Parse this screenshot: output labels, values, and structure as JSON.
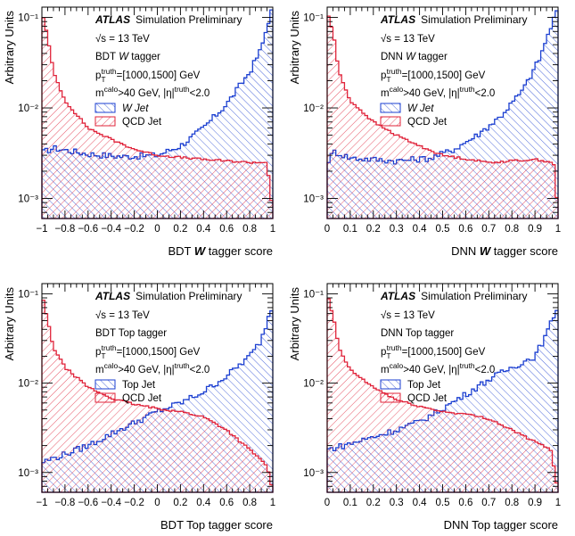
{
  "colors": {
    "signal": "#1b3fd1",
    "background": "#e0233a",
    "axis": "#000000"
  },
  "chart_data": [
    {
      "type": "histogram",
      "scale": "log",
      "xlim": [
        -1,
        1
      ],
      "ylim": [
        0.0006,
        0.13
      ],
      "xticks": [
        -1,
        -0.8,
        -0.6,
        -0.4,
        -0.2,
        0,
        0.2,
        0.4,
        0.6,
        0.8,
        1
      ],
      "xtick_labels": [
        "−1",
        "−0.8",
        "−0.6",
        "−0.4",
        "−0.2",
        "0",
        "0.2",
        "0.4",
        "0.6",
        "0.8",
        "1"
      ],
      "yticks": [
        0.001,
        0.01,
        0.1
      ],
      "ytick_labels": [
        "10⁻³",
        "10⁻²",
        "10⁻¹"
      ],
      "xlabel_pre": "BDT ",
      "xlabel_em": "W",
      "xlabel_post": " tagger score",
      "ylabel": "Arbitrary Units",
      "atlas_label": "ATLAS",
      "atlas_sub": "Simulation Preliminary",
      "lines": [
        "√s = 13 TeV",
        "BDT W tagger",
        "p_T^truth=[1000,1500] GeV",
        "m^calo>40 GeV, |η|^truth<2.0"
      ],
      "legend": [
        {
          "label": "W Jet",
          "label_em": true,
          "role": "signal"
        },
        {
          "label": "QCD Jet",
          "label_em": false,
          "role": "background"
        }
      ],
      "nbins": 80,
      "series": [
        {
          "name": "W Jet",
          "role": "signal",
          "profile": [
            [
              -1,
              0.0032
            ],
            [
              -0.9,
              0.0036
            ],
            [
              -0.6,
              0.0031
            ],
            [
              -0.3,
              0.0029
            ],
            [
              0,
              0.003
            ],
            [
              0.2,
              0.0038
            ],
            [
              0.4,
              0.006
            ],
            [
              0.6,
              0.011
            ],
            [
              0.8,
              0.025
            ],
            [
              0.9,
              0.045
            ],
            [
              0.97,
              0.1
            ],
            [
              1,
              0.13
            ]
          ]
        },
        {
          "name": "QCD Jet",
          "role": "background",
          "profile": [
            [
              -1,
              0.12
            ],
            [
              -0.95,
              0.06
            ],
            [
              -0.9,
              0.025
            ],
            [
              -0.8,
              0.012
            ],
            [
              -0.6,
              0.006
            ],
            [
              -0.4,
              0.0045
            ],
            [
              -0.2,
              0.0035
            ],
            [
              0,
              0.003
            ],
            [
              0.4,
              0.0027
            ],
            [
              0.8,
              0.0025
            ],
            [
              0.95,
              0.0025
            ],
            [
              1,
              0.0007
            ]
          ]
        }
      ]
    },
    {
      "type": "histogram",
      "scale": "log",
      "xlim": [
        0,
        1
      ],
      "ylim": [
        0.0006,
        0.13
      ],
      "xticks": [
        0,
        0.1,
        0.2,
        0.3,
        0.4,
        0.5,
        0.6,
        0.7,
        0.8,
        0.9,
        1
      ],
      "xtick_labels": [
        "0",
        "0.1",
        "0.2",
        "0.3",
        "0.4",
        "0.5",
        "0.6",
        "0.7",
        "0.8",
        "0.9",
        "1"
      ],
      "yticks": [
        0.001,
        0.01,
        0.1
      ],
      "ytick_labels": [
        "10⁻³",
        "10⁻²",
        "10⁻¹"
      ],
      "xlabel_pre": "DNN ",
      "xlabel_em": "W",
      "xlabel_post": " tagger score",
      "ylabel": "Arbitrary Units",
      "atlas_label": "ATLAS",
      "atlas_sub": "Simulation Preliminary",
      "lines": [
        "√s = 13 TeV",
        "DNN W tagger",
        "p_T^truth=[1000,1500] GeV",
        "m^calo>40 GeV, |η|^truth<2.0"
      ],
      "legend": [
        {
          "label": "W Jet",
          "label_em": true,
          "role": "signal"
        },
        {
          "label": "QCD Jet",
          "label_em": false,
          "role": "background"
        }
      ],
      "nbins": 80,
      "series": [
        {
          "name": "W Jet",
          "role": "signal",
          "profile": [
            [
              0,
              0.0025
            ],
            [
              0.03,
              0.0033
            ],
            [
              0.1,
              0.0028
            ],
            [
              0.3,
              0.0026
            ],
            [
              0.45,
              0.0028
            ],
            [
              0.55,
              0.0035
            ],
            [
              0.65,
              0.005
            ],
            [
              0.75,
              0.008
            ],
            [
              0.85,
              0.016
            ],
            [
              0.92,
              0.035
            ],
            [
              0.97,
              0.08
            ],
            [
              1,
              0.13
            ]
          ]
        },
        {
          "name": "QCD Jet",
          "role": "background",
          "profile": [
            [
              0,
              0.12
            ],
            [
              0.03,
              0.06
            ],
            [
              0.05,
              0.025
            ],
            [
              0.1,
              0.012
            ],
            [
              0.2,
              0.007
            ],
            [
              0.3,
              0.005
            ],
            [
              0.4,
              0.0038
            ],
            [
              0.5,
              0.003
            ],
            [
              0.7,
              0.0025
            ],
            [
              0.9,
              0.0027
            ],
            [
              0.98,
              0.0025
            ],
            [
              1,
              0.0007
            ]
          ]
        }
      ]
    },
    {
      "type": "histogram",
      "scale": "log",
      "xlim": [
        -1,
        1
      ],
      "ylim": [
        0.0006,
        0.13
      ],
      "xticks": [
        -1,
        -0.8,
        -0.6,
        -0.4,
        -0.2,
        0,
        0.2,
        0.4,
        0.6,
        0.8,
        1
      ],
      "xtick_labels": [
        "−1",
        "−0.8",
        "−0.6",
        "−0.4",
        "−0.2",
        "0",
        "0.2",
        "0.4",
        "0.6",
        "0.8",
        "1"
      ],
      "yticks": [
        0.001,
        0.01,
        0.1
      ],
      "ytick_labels": [
        "10⁻³",
        "10⁻²",
        "10⁻¹"
      ],
      "xlabel_pre": "BDT Top tagger score",
      "xlabel_em": "",
      "xlabel_post": "",
      "ylabel": "Arbitrary Units",
      "atlas_label": "ATLAS",
      "atlas_sub": "Simulation Preliminary",
      "lines": [
        "√s = 13 TeV",
        "BDT Top tagger",
        "p_T^truth=[1000,1500] GeV",
        "m^calo>40 GeV, |η|^truth<2.0"
      ],
      "legend": [
        {
          "label": "Top Jet",
          "label_em": false,
          "role": "signal"
        },
        {
          "label": "QCD Jet",
          "label_em": false,
          "role": "background"
        }
      ],
      "nbins": 80,
      "series": [
        {
          "name": "Top Jet",
          "role": "signal",
          "profile": [
            [
              -1,
              0.0013
            ],
            [
              -0.8,
              0.0016
            ],
            [
              -0.6,
              0.002
            ],
            [
              -0.4,
              0.0027
            ],
            [
              -0.2,
              0.0036
            ],
            [
              0,
              0.0048
            ],
            [
              0.2,
              0.006
            ],
            [
              0.4,
              0.008
            ],
            [
              0.6,
              0.012
            ],
            [
              0.8,
              0.02
            ],
            [
              0.9,
              0.03
            ],
            [
              0.97,
              0.06
            ],
            [
              1,
              0.07
            ]
          ]
        },
        {
          "name": "QCD Jet",
          "role": "background",
          "profile": [
            [
              -1,
              0.1
            ],
            [
              -0.95,
              0.05
            ],
            [
              -0.9,
              0.025
            ],
            [
              -0.8,
              0.015
            ],
            [
              -0.6,
              0.009
            ],
            [
              -0.4,
              0.0068
            ],
            [
              -0.2,
              0.0058
            ],
            [
              0,
              0.0052
            ],
            [
              0.2,
              0.0048
            ],
            [
              0.4,
              0.0042
            ],
            [
              0.6,
              0.003
            ],
            [
              0.8,
              0.0018
            ],
            [
              0.95,
              0.0012
            ],
            [
              1,
              0.0006
            ]
          ]
        }
      ]
    },
    {
      "type": "histogram",
      "scale": "log",
      "xlim": [
        0,
        1
      ],
      "ylim": [
        0.0006,
        0.13
      ],
      "xticks": [
        0,
        0.1,
        0.2,
        0.3,
        0.4,
        0.5,
        0.6,
        0.7,
        0.8,
        0.9,
        1
      ],
      "xtick_labels": [
        "0",
        "0.1",
        "0.2",
        "0.3",
        "0.4",
        "0.5",
        "0.6",
        "0.7",
        "0.8",
        "0.9",
        "1"
      ],
      "yticks": [
        0.001,
        0.01,
        0.1
      ],
      "ytick_labels": [
        "10⁻³",
        "10⁻²",
        "10⁻¹"
      ],
      "xlabel_pre": "DNN Top tagger score",
      "xlabel_em": "",
      "xlabel_post": "",
      "ylabel": "Arbitrary Units",
      "atlas_label": "ATLAS",
      "atlas_sub": "Simulation Preliminary",
      "lines": [
        "√s = 13 TeV",
        "DNN Top tagger",
        "p_T^truth=[1000,1500] GeV",
        "m^calo>40 GeV, |η|^truth<2.0"
      ],
      "legend": [
        {
          "label": "Top Jet",
          "label_em": false,
          "role": "signal"
        },
        {
          "label": "QCD Jet",
          "label_em": false,
          "role": "background"
        }
      ],
      "nbins": 80,
      "series": [
        {
          "name": "Top Jet",
          "role": "signal",
          "profile": [
            [
              0,
              0.0018
            ],
            [
              0.1,
              0.0021
            ],
            [
              0.2,
              0.0025
            ],
            [
              0.3,
              0.003
            ],
            [
              0.4,
              0.0037
            ],
            [
              0.5,
              0.0052
            ],
            [
              0.6,
              0.0075
            ],
            [
              0.7,
              0.011
            ],
            [
              0.8,
              0.015
            ],
            [
              0.9,
              0.02
            ],
            [
              0.95,
              0.035
            ],
            [
              1,
              0.075
            ]
          ]
        },
        {
          "name": "QCD Jet",
          "role": "background",
          "profile": [
            [
              0,
              0.1
            ],
            [
              0.03,
              0.05
            ],
            [
              0.05,
              0.025
            ],
            [
              0.1,
              0.014
            ],
            [
              0.2,
              0.009
            ],
            [
              0.3,
              0.0065
            ],
            [
              0.4,
              0.0055
            ],
            [
              0.5,
              0.0048
            ],
            [
              0.6,
              0.0045
            ],
            [
              0.7,
              0.004
            ],
            [
              0.8,
              0.003
            ],
            [
              0.9,
              0.0022
            ],
            [
              0.97,
              0.0018
            ],
            [
              1,
              0.0006
            ]
          ]
        }
      ]
    }
  ]
}
